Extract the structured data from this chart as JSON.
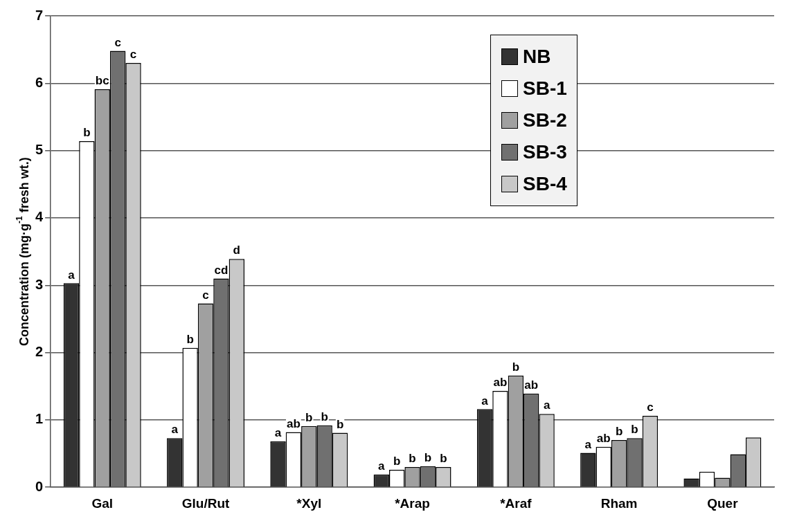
{
  "chart_data": {
    "type": "bar",
    "ylabel": "Concentration (mg·g$^{-1}$ fresh wt.)",
    "categories": [
      "Gal",
      "Glu/Rut",
      "*Xyl",
      "*Arap",
      "*Araf",
      "Rham",
      "Quer"
    ],
    "series": [
      {
        "name": "NB",
        "color": "#333333",
        "values": [
          3.03,
          0.73,
          0.68,
          0.19,
          1.16,
          0.51,
          0.13
        ],
        "value_labels": [
          "a",
          "a",
          "a",
          "a",
          "a",
          "a",
          null
        ]
      },
      {
        "name": "SB-1",
        "color": "#ffffff",
        "values": [
          5.14,
          2.07,
          0.82,
          0.26,
          1.43,
          0.6,
          0.23
        ],
        "value_labels": [
          "b",
          "b",
          "ab",
          "b",
          "ab",
          "ab",
          null
        ]
      },
      {
        "name": "SB-2",
        "color": "#a0a0a0",
        "values": [
          5.91,
          2.73,
          0.91,
          0.3,
          1.66,
          0.7,
          0.14
        ],
        "value_labels": [
          "bc",
          "c",
          "b",
          "b",
          "b",
          "b",
          null
        ]
      },
      {
        "name": "SB-3",
        "color": "#707070",
        "values": [
          6.48,
          3.1,
          0.92,
          0.31,
          1.39,
          0.73,
          0.49
        ],
        "value_labels": [
          "c",
          "cd",
          "b",
          "b",
          "ab",
          "b",
          null
        ]
      },
      {
        "name": "SB-4",
        "color": "#c8c8c8",
        "values": [
          6.3,
          3.39,
          0.81,
          0.3,
          1.09,
          1.06,
          0.74
        ],
        "value_labels": [
          "c",
          "d",
          "b",
          "b",
          "a",
          "c",
          null
        ]
      }
    ],
    "ylim": [
      0,
      7
    ],
    "yticks": [
      0,
      1,
      2,
      3,
      4,
      5,
      6,
      7
    ],
    "grid": "y",
    "legend": "top right"
  }
}
